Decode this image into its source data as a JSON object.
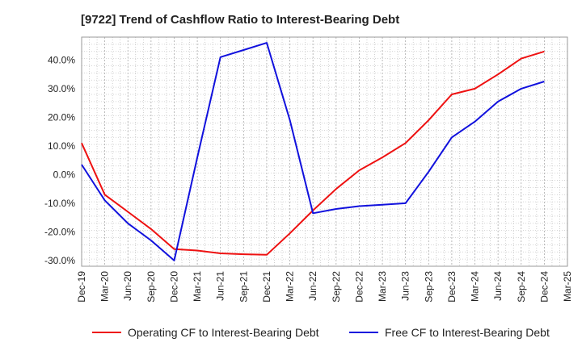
{
  "chart_data": {
    "type": "line",
    "title": "[9722]  Trend of Cashflow Ratio to Interest-Bearing Debt",
    "xlabel": "",
    "ylabel": "",
    "ylim": [
      -32,
      48
    ],
    "yticks": [
      -30,
      -20,
      -10,
      0,
      10,
      20,
      30,
      40
    ],
    "ytick_labels": [
      "-30.0%",
      "-20.0%",
      "-10.0%",
      "0.0%",
      "10.0%",
      "20.0%",
      "30.0%",
      "40.0%"
    ],
    "xtick_labels": [
      "Dec-19",
      "Mar-20",
      "Jun-20",
      "Sep-20",
      "Dec-20",
      "Mar-21",
      "Jun-21",
      "Sep-21",
      "Dec-21",
      "Mar-22",
      "Jun-22",
      "Sep-22",
      "Dec-22",
      "Mar-23",
      "Jun-23",
      "Sep-23",
      "Dec-23",
      "Mar-24",
      "Jun-24",
      "Sep-24",
      "Dec-24",
      "Mar-25"
    ],
    "grid": true,
    "legend_position": "bottom",
    "series": [
      {
        "name": "Operating CF to Interest-Bearing Debt",
        "color": "#ee1111",
        "points": [
          [
            "Dec-19",
            11.0
          ],
          [
            "Mar-20",
            -7.0
          ],
          [
            "Jun-20",
            -13.0
          ],
          [
            "Sep-20",
            -19.0
          ],
          [
            "Dec-20",
            -26.0
          ],
          [
            "Mar-21",
            -26.5
          ],
          [
            "Jun-21",
            -27.5
          ],
          [
            "Sep-21",
            -27.8
          ],
          [
            "Dec-21",
            -28.0
          ],
          [
            "Mar-22",
            -20.5
          ],
          [
            "Jun-22",
            -12.5
          ],
          [
            "Sep-22",
            -5.0
          ],
          [
            "Dec-22",
            1.5
          ],
          [
            "Mar-23",
            6.0
          ],
          [
            "Jun-23",
            11.0
          ],
          [
            "Sep-23",
            19.0
          ],
          [
            "Dec-23",
            28.0
          ],
          [
            "Mar-24",
            30.0
          ],
          [
            "Jun-24",
            35.0
          ],
          [
            "Sep-24",
            40.5
          ],
          [
            "Dec-24",
            43.0
          ]
        ]
      },
      {
        "name": "Free CF to Interest-Bearing Debt",
        "color": "#1111dd",
        "points": [
          [
            "Dec-19",
            3.5
          ],
          [
            "Mar-20",
            -9.0
          ],
          [
            "Jun-20",
            -17.0
          ],
          [
            "Sep-20",
            -23.0
          ],
          [
            "Dec-20",
            -30.0
          ],
          [
            "Mar-21",
            6.0
          ],
          [
            "Jun-21",
            41.0
          ],
          [
            "Sep-21",
            43.5
          ],
          [
            "Dec-21",
            46.0
          ],
          [
            "Mar-22",
            19.0
          ],
          [
            "Jun-22",
            -13.5
          ],
          [
            "Sep-22",
            -12.0
          ],
          [
            "Dec-22",
            -11.0
          ],
          [
            "Mar-23",
            -10.5
          ],
          [
            "Jun-23",
            -10.0
          ],
          [
            "Sep-23",
            1.0
          ],
          [
            "Dec-23",
            13.0
          ],
          [
            "Mar-24",
            18.5
          ],
          [
            "Jun-24",
            25.5
          ],
          [
            "Sep-24",
            30.0
          ],
          [
            "Dec-24",
            32.5
          ]
        ]
      }
    ]
  }
}
